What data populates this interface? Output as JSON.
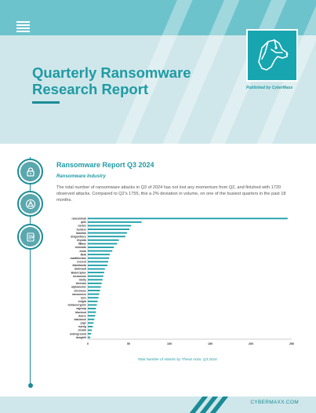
{
  "header": {
    "title": "Quarterly Ransomware Research Report",
    "published_by": "Published by CyberMaxx"
  },
  "section": {
    "title": "Ransomware Report Q3 2024",
    "subtitle": "Ransomware Industry",
    "body": "The total number of ransomware attacks in Q3 of 2024 has not lost any momentum from Q2, and finished with 1720 observed attacks. Compared to Q2's 1755, this a 2% deviation in volume, on one of the busiest quarters in the past 18 months."
  },
  "icons": [
    "lock-icon",
    "warning-icon",
    "report-icon"
  ],
  "chart_data": {
    "type": "bar",
    "orientation": "horizontal",
    "caption": "Total Number of Attacks by Threat Actor, Q3 2024",
    "categories": [
      "ransomhub",
      "qilin",
      "cactus",
      "hunters",
      "bianlian",
      "dragonforce",
      "rhysida",
      "8Base",
      "eldorado",
      "cloak",
      "RHA",
      "madliberator",
      "everest",
      "blackbasta",
      "darkvault",
      "BrainCipher",
      "incransom",
      "trinity",
      "threeam",
      "alphalocker",
      "stormous",
      "ransomexx",
      "lynx",
      "knight",
      "metaencryptor",
      "ragroup",
      "blackout",
      "donex",
      "blacklock",
      "prgc",
      "rrprog",
      "cicada",
      "underground",
      "dunghill"
    ],
    "values": [
      245,
      66,
      53,
      51,
      48,
      46,
      38,
      36,
      32,
      30,
      27,
      26,
      25,
      24,
      21,
      20,
      19,
      18,
      17,
      16,
      15,
      14,
      13,
      12,
      11,
      10,
      10,
      9,
      8,
      7,
      6,
      5,
      4,
      3
    ],
    "xticks": [
      0,
      50,
      100,
      150,
      200,
      250
    ],
    "xlim": [
      0,
      250
    ],
    "grid": false,
    "color": "#1b9fa9"
  },
  "footer": {
    "site": "CYBERMAXX.COM"
  }
}
